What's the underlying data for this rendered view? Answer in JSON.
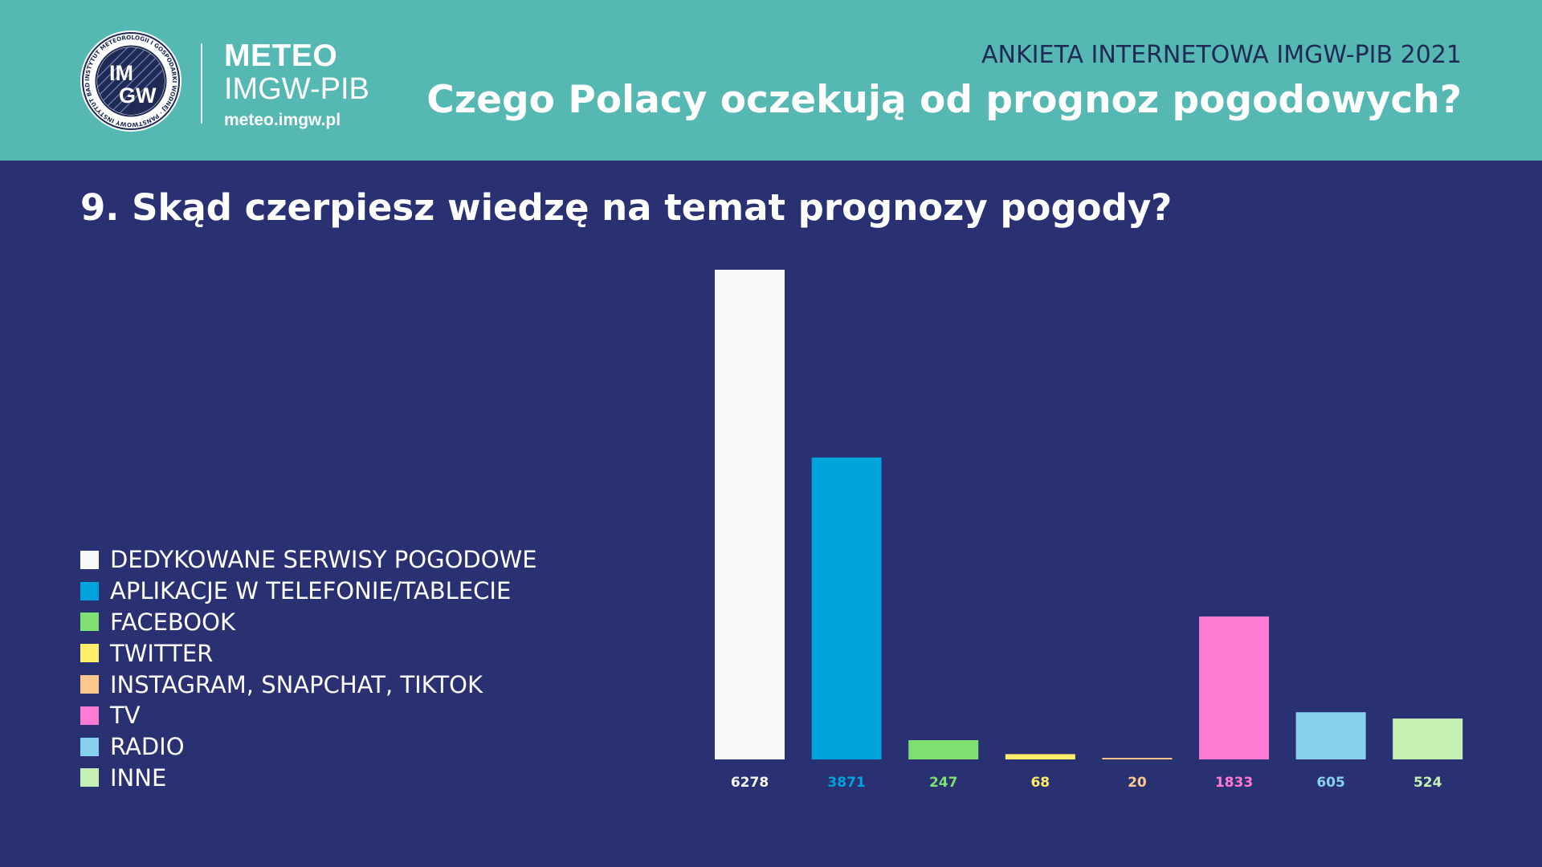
{
  "header": {
    "brand_name": "METEO",
    "brand_org": "IMGW-PIB",
    "brand_url": "meteo.imgw.pl",
    "survey_label": "ANKIETA INTERNETOWA IMGW-PIB 2021",
    "survey_title": "Czego Polacy oczekują od prognoz pogodowych?"
  },
  "logo": {
    "top_letters": "IM",
    "bottom_letters": "GW",
    "ring_text": "INSTYTUT METEOROLOGII I GOSPODARKI WODNEJ · PAŃSTWOWY INSTYTUT BADAWCZY ·"
  },
  "question": "9. Skąd czerpiesz wiedzę na temat prognozy pogody?",
  "colors": {
    "background": "#2a3172",
    "header": "#55b8b2",
    "survey_label": "#1f2a55"
  },
  "legend": [
    {
      "label": "DEDYKOWANE SERWISY POGODOWE",
      "color": "#f8f8f8"
    },
    {
      "label": "APLIKACJE W TELEFONIE/TABLECIE",
      "color": "#00a3dc"
    },
    {
      "label": "FACEBOOK",
      "color": "#7ee070"
    },
    {
      "label": "TWITTER",
      "color": "#ffee6a"
    },
    {
      "label": "INSTAGRAM, SNAPCHAT, TIKTOK",
      "color": "#ffc98e"
    },
    {
      "label": "TV",
      "color": "#ff7ad2"
    },
    {
      "label": "RADIO",
      "color": "#86d1ed"
    },
    {
      "label": "INNE",
      "color": "#c4f0b4"
    }
  ],
  "chart_data": {
    "type": "bar",
    "title": "",
    "xlabel": "",
    "ylabel": "",
    "categories": [
      "DEDYKOWANE SERWISY POGODOWE",
      "APLIKACJE W TELEFONIE/TABLECIE",
      "FACEBOOK",
      "TWITTER",
      "INSTAGRAM, SNAPCHAT, TIKTOK",
      "TV",
      "RADIO",
      "INNE"
    ],
    "values": [
      6278,
      3871,
      247,
      68,
      20,
      1833,
      605,
      524
    ],
    "value_labels": [
      "6278",
      "3871",
      "247",
      "68",
      "20",
      "1833",
      "605",
      "524"
    ],
    "colors": [
      "#f8f8f8",
      "#00a3dc",
      "#7ee070",
      "#ffee6a",
      "#ffc98e",
      "#ff7ad2",
      "#86d1ed",
      "#c4f0b4"
    ],
    "ylim": [
      0,
      6278
    ],
    "grid": false,
    "legend_position": "left"
  }
}
